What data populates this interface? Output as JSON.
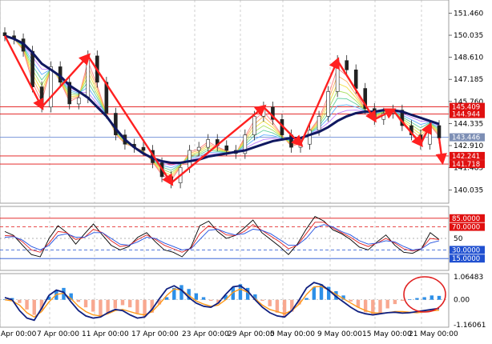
{
  "chart_data": [
    {
      "type": "candlestick",
      "panel": "price",
      "y_ticks": [
        "151.460",
        "150.035",
        "148.610",
        "147.185",
        "145.760",
        "144.335",
        "142.910",
        "141.485",
        "140.035"
      ],
      "ylim": [
        139.5,
        152.0
      ],
      "price_labels": [
        {
          "value": 145.409,
          "text": "145.409",
          "color": "#e01010"
        },
        {
          "value": 144.944,
          "text": "144.944",
          "color": "#e01010"
        },
        {
          "value": 143.446,
          "text": "143.446",
          "color": "#7d8fb5"
        },
        {
          "value": 142.241,
          "text": "142.241",
          "color": "#e01010"
        },
        {
          "value": 141.718,
          "text": "141.718",
          "color": "#e01010"
        }
      ],
      "horizontal_lines": [
        {
          "value": 145.409,
          "color": "#e01010"
        },
        {
          "value": 144.944,
          "color": "#e01010"
        },
        {
          "value": 143.446,
          "color": "#6f8ed6"
        },
        {
          "value": 142.241,
          "color": "#e01010"
        },
        {
          "value": 141.718,
          "color": "#e01010"
        }
      ],
      "series": [
        {
          "name": "",
          "role": "close",
          "values": [
            150.0,
            149.8,
            149.0,
            146.7,
            145.4,
            148.0,
            147.0,
            145.6,
            146.0,
            148.7,
            147.0,
            145.0,
            143.6,
            143.0,
            142.8,
            142.6,
            141.8,
            140.9,
            140.5,
            141.5,
            142.6,
            142.8,
            143.3,
            142.9,
            142.6,
            142.4,
            143.6,
            144.8,
            145.4,
            144.6,
            143.6,
            142.8,
            143.0,
            143.9,
            144.8,
            146.4,
            148.4,
            147.8,
            146.6,
            145.3,
            144.6,
            145.0,
            145.2,
            144.2,
            143.6,
            143.0,
            144.2,
            143.4
          ]
        },
        {
          "name": "",
          "role": "moving-average",
          "values": [
            150.0,
            149.8,
            149.5,
            148.9,
            148.2,
            147.8,
            147.4,
            146.8,
            146.4,
            146.0,
            145.4,
            144.8,
            144.0,
            143.3,
            142.8,
            142.4,
            142.1,
            141.9,
            141.8,
            141.8,
            141.9,
            142.0,
            142.2,
            142.3,
            142.4,
            142.5,
            142.6,
            142.8,
            143.0,
            143.2,
            143.3,
            143.4,
            143.4,
            143.6,
            143.8,
            144.1,
            144.5,
            144.8,
            145.0,
            145.1,
            145.1,
            145.2,
            145.2,
            145.1,
            144.9,
            144.7,
            144.5,
            144.3
          ]
        }
      ],
      "annotations": [
        {
          "type": "trend-arrows",
          "color": "#ff2020",
          "count": 12
        }
      ]
    },
    {
      "type": "line",
      "panel": "stochastic",
      "y_ticks": [
        "85.0000",
        "70.0000",
        "50",
        "30.0000",
        "15.0000"
      ],
      "badges": [
        {
          "value": 85,
          "text": "85.0000",
          "color": "#e01010"
        },
        {
          "value": 70,
          "text": "70.0000",
          "color": "#e01010"
        },
        {
          "value": 30,
          "text": "30.0000",
          "color": "#2050d0"
        },
        {
          "value": 15,
          "text": "15.0000",
          "color": "#2050d0"
        }
      ],
      "ylim": [
        0,
        100
      ],
      "series": [
        {
          "name": "",
          "color": "#000000",
          "values": [
            62,
            55,
            38,
            22,
            18,
            50,
            72,
            60,
            40,
            58,
            75,
            56,
            38,
            30,
            36,
            52,
            60,
            44,
            30,
            26,
            18,
            35,
            72,
            80,
            62,
            50,
            55,
            68,
            82,
            60,
            48,
            36,
            22,
            40,
            66,
            88,
            80,
            65,
            58,
            48,
            35,
            30,
            44,
            56,
            38,
            26,
            24,
            32,
            60,
            48
          ]
        },
        {
          "name": "",
          "color": "#e02020",
          "values": [
            55,
            54,
            44,
            30,
            26,
            42,
            62,
            60,
            48,
            52,
            66,
            60,
            46,
            36,
            38,
            48,
            56,
            48,
            38,
            32,
            26,
            33,
            58,
            72,
            66,
            56,
            55,
            62,
            74,
            64,
            54,
            44,
            32,
            38,
            58,
            78,
            78,
            68,
            60,
            52,
            42,
            36,
            42,
            50,
            42,
            32,
            28,
            32,
            50,
            48
          ]
        },
        {
          "name": "",
          "color": "#2050e0",
          "values": [
            52,
            53,
            47,
            36,
            30,
            38,
            55,
            58,
            52,
            52,
            60,
            60,
            50,
            40,
            38,
            44,
            52,
            50,
            42,
            36,
            30,
            32,
            48,
            64,
            66,
            60,
            56,
            58,
            66,
            64,
            58,
            48,
            38,
            38,
            50,
            68,
            74,
            70,
            62,
            56,
            46,
            40,
            42,
            46,
            44,
            36,
            30,
            32,
            42,
            46
          ]
        }
      ]
    },
    {
      "type": "bar",
      "panel": "macd",
      "y_ticks": [
        "1.06483",
        "0.00",
        "-1.16061"
      ],
      "ylim": [
        -1.16061,
        1.06483
      ],
      "series": [
        {
          "name": "",
          "role": "histogram",
          "values": [
            0.02,
            0.08,
            -0.15,
            -0.45,
            -0.7,
            -0.5,
            0.15,
            0.42,
            0.55,
            0.3,
            -0.1,
            -0.35,
            -0.55,
            -0.75,
            -0.6,
            -0.4,
            -0.25,
            -0.35,
            -0.62,
            -0.78,
            -0.6,
            -0.22,
            0.12,
            0.55,
            0.68,
            0.5,
            0.3,
            0.12,
            -0.05,
            -0.18,
            0.22,
            0.58,
            0.72,
            0.55,
            0.25,
            -0.05,
            -0.3,
            -0.6,
            -0.8,
            -0.55,
            -0.22,
            0.08,
            0.58,
            0.72,
            0.6,
            0.4,
            0.2,
            -0.08,
            -0.35,
            -0.58,
            -0.72,
            -0.6,
            -0.4,
            -0.2,
            -0.05,
            0.02,
            0.08,
            0.12,
            0.2,
            0.18
          ]
        },
        {
          "name": "",
          "role": "signal",
          "color": "#ff9a1a",
          "values": [
            0.0,
            -0.05,
            -0.25,
            -0.6,
            -0.8,
            -0.55,
            -0.1,
            0.25,
            0.3,
            0.05,
            -0.3,
            -0.55,
            -0.7,
            -0.75,
            -0.65,
            -0.5,
            -0.45,
            -0.55,
            -0.65,
            -0.7,
            -0.55,
            -0.2,
            0.2,
            0.5,
            0.45,
            0.2,
            -0.05,
            -0.2,
            -0.3,
            -0.25,
            0.0,
            0.35,
            0.5,
            0.35,
            0.05,
            -0.25,
            -0.45,
            -0.55,
            -0.65,
            -0.5,
            -0.2,
            0.25,
            0.6,
            0.62,
            0.45,
            0.25,
            0.05,
            -0.15,
            -0.35,
            -0.5,
            -0.6,
            -0.62,
            -0.6,
            -0.55,
            -0.55,
            -0.58,
            -0.6,
            -0.56,
            -0.52,
            -0.48
          ]
        },
        {
          "name": "",
          "role": "macd",
          "color": "#102080",
          "values": [
            0.1,
            0.0,
            -0.5,
            -0.85,
            -0.95,
            -0.4,
            0.2,
            0.45,
            0.35,
            -0.1,
            -0.5,
            -0.75,
            -0.85,
            -0.8,
            -0.6,
            -0.45,
            -0.5,
            -0.7,
            -0.85,
            -0.8,
            -0.45,
            0.05,
            0.5,
            0.65,
            0.45,
            0.1,
            -0.15,
            -0.3,
            -0.35,
            -0.15,
            0.25,
            0.6,
            0.65,
            0.4,
            0.0,
            -0.35,
            -0.6,
            -0.75,
            -0.8,
            -0.5,
            0.0,
            0.55,
            0.8,
            0.7,
            0.45,
            0.15,
            -0.1,
            -0.35,
            -0.55,
            -0.65,
            -0.7,
            -0.65,
            -0.6,
            -0.58,
            -0.62,
            -0.6,
            -0.55,
            -0.5,
            -0.45,
            -0.4
          ]
        }
      ],
      "annotations": [
        {
          "type": "circle",
          "color": "#e02020"
        }
      ]
    }
  ],
  "x_axis": {
    "labels": [
      "Apr 00:00",
      "7 Apr 00:00",
      "11 Apr 00:00",
      "17 Apr 00:00",
      "23 Apr 00:00",
      "29 Apr 00:00",
      "5 May 00:00",
      "9 May 00:00",
      "15 May 00:00",
      "21 May 00:00"
    ]
  }
}
